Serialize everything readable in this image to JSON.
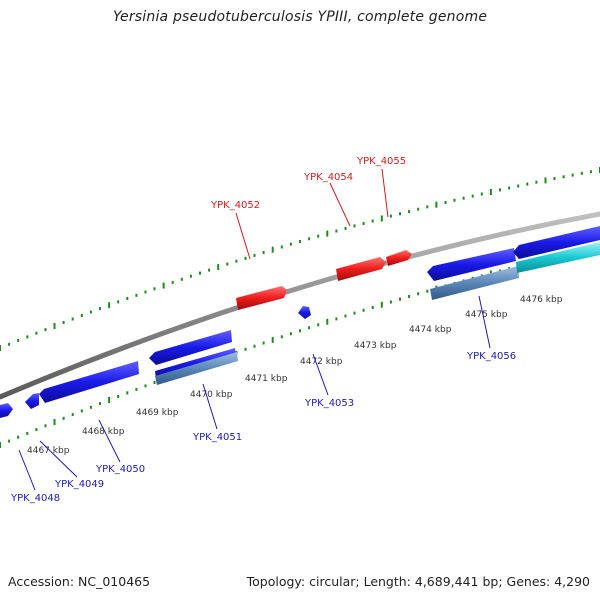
{
  "title": "Yersinia pseudotuberculosis YPIII, complete genome",
  "footer": {
    "accession": "Accession: NC_010465",
    "summary": "Topology: circular; Length: 4,689,441 bp; Genes: 4,290"
  },
  "colors": {
    "backbone": "#8c8c8c",
    "forward_gene": "#ee1c1c",
    "reverse_gene": "#1a1ae8",
    "cds_feature": "#5b86b8",
    "aux_feature": "#19c8d2",
    "ticks": "#1f8a1f",
    "label_red": "#d21c1c",
    "label_blue": "#1c1cb0"
  },
  "scale_labels": [
    "4467 kbp",
    "4468 kbp",
    "4469 kbp",
    "4470 kbp",
    "4471 kbp",
    "4472 kbp",
    "4473 kbp",
    "4474 kbp",
    "4475 kbp",
    "4476 kbp"
  ],
  "gene_labels_forward": [
    "YPK_4052",
    "YPK_4054",
    "YPK_4055"
  ],
  "gene_labels_reverse": [
    "YPK_4048",
    "YPK_4049",
    "YPK_4050",
    "YPK_4051",
    "YPK_4053",
    "YPK_4056"
  ]
}
